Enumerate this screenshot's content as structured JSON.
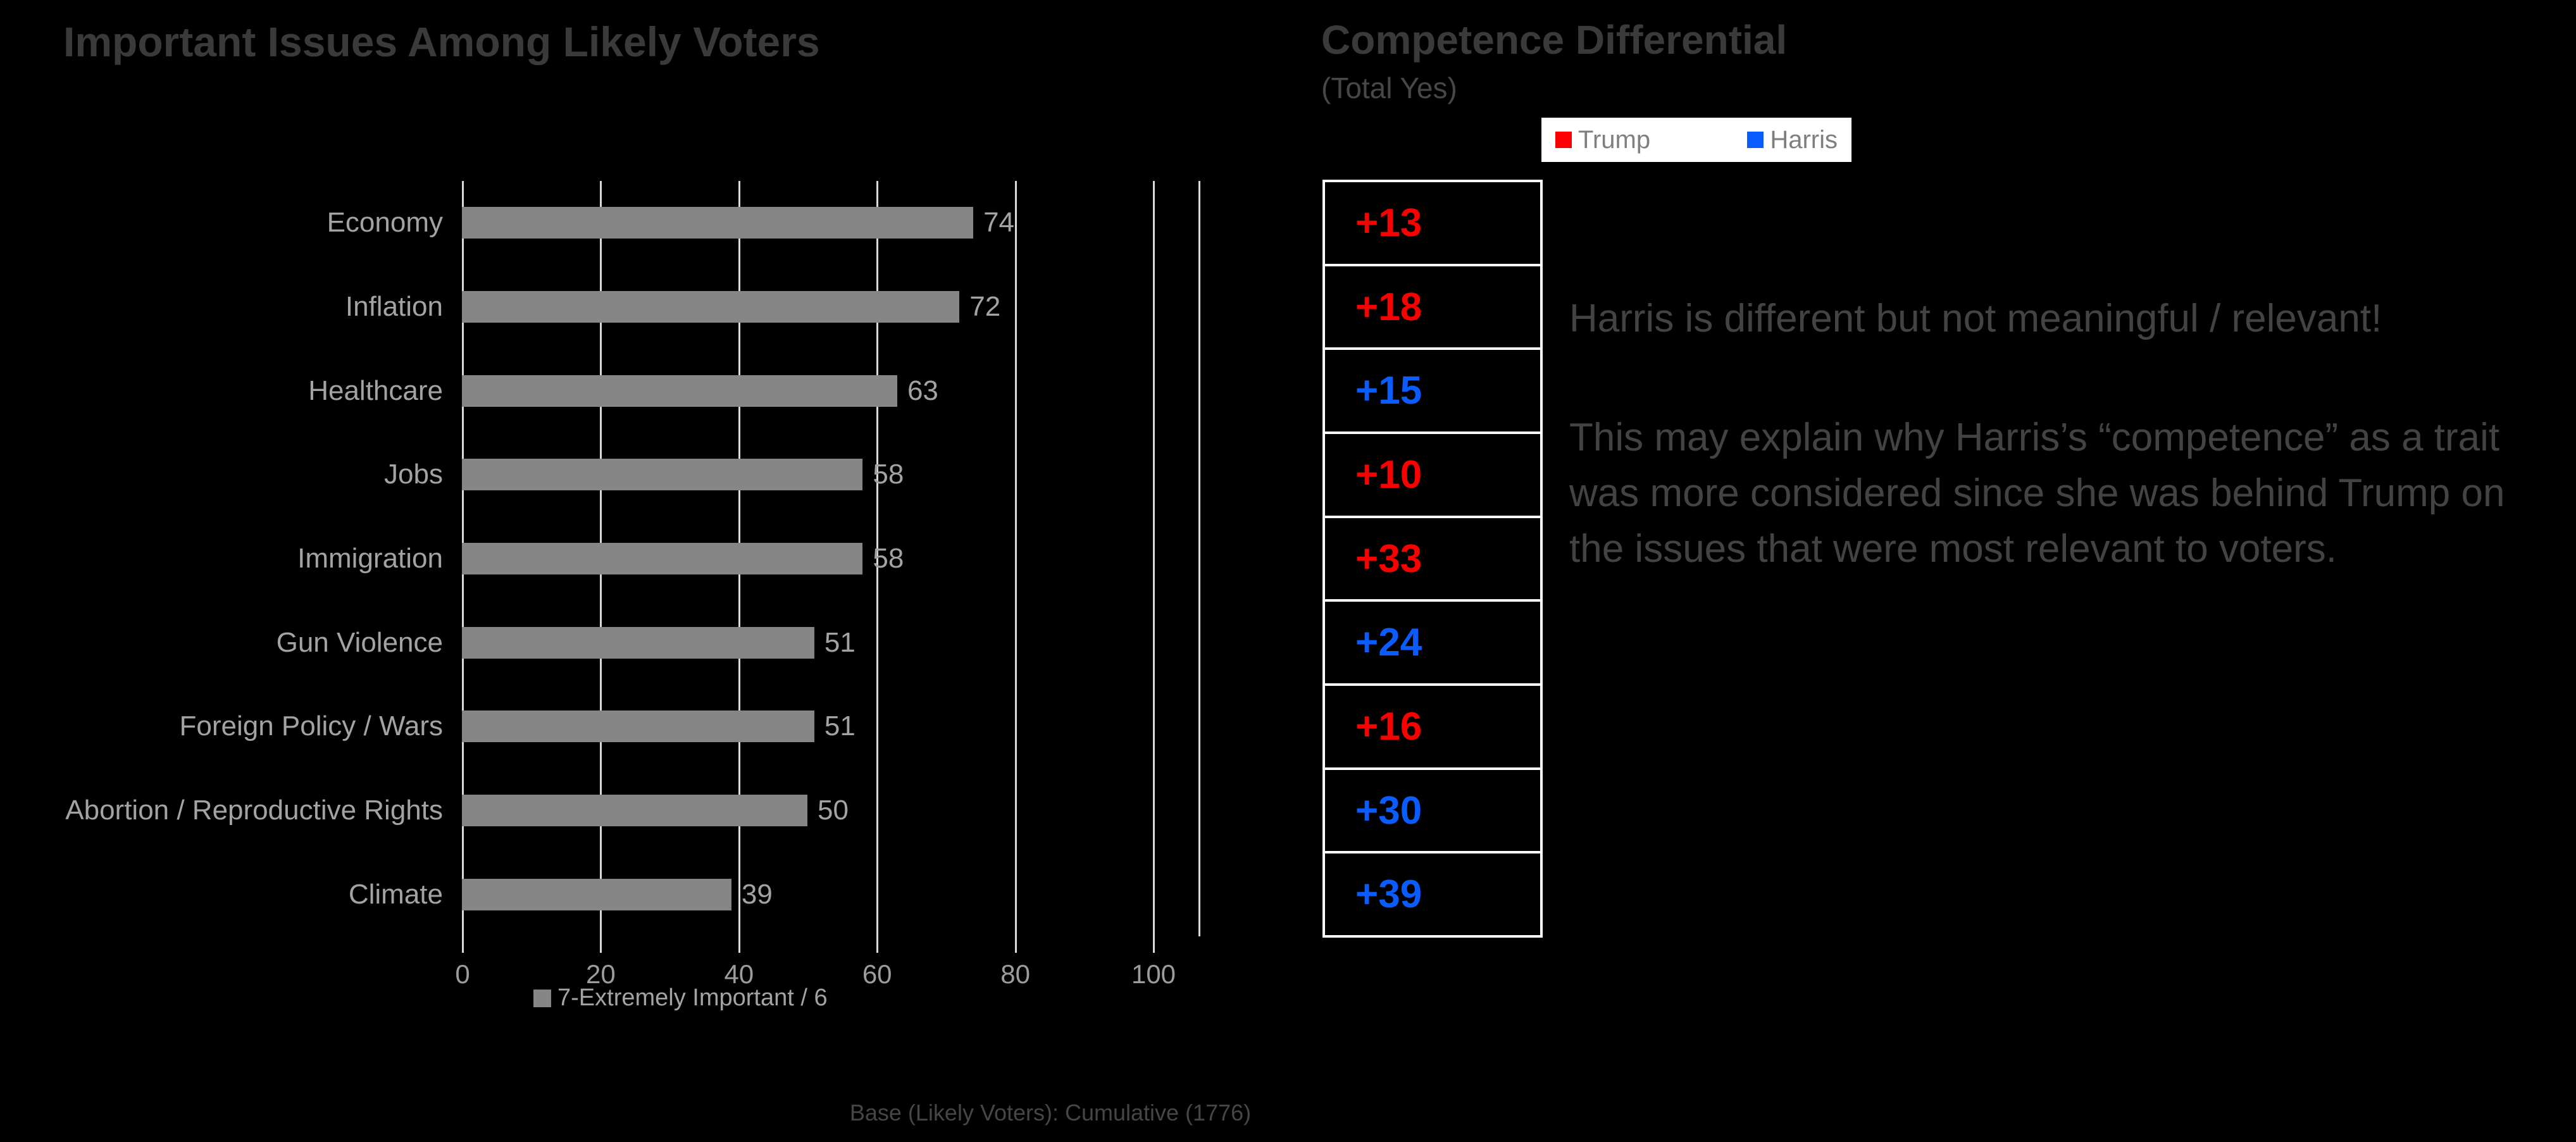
{
  "colors": {
    "background": "#000000",
    "trump": "#FA0000",
    "harris": "#0A5CFF",
    "bar_gray": "#868686",
    "gridline": "#D9D9D9",
    "label_gray": "#A3A3A3",
    "title_gray": "#3A3A3C",
    "legend_text_gray": "#7F7F7F",
    "legend_background": "#FFFFFF"
  },
  "chart_data": [
    {
      "type": "bar",
      "orientation": "horizontal",
      "title": "Important Issues Among Likely Voters",
      "categories": [
        "Economy",
        "Inflation",
        "Healthcare",
        "Jobs",
        "Immigration",
        "Gun Violence",
        "Foreign Policy / Wars",
        "Abortion / Reproductive Rights",
        "Climate"
      ],
      "values": [
        74,
        72,
        63,
        58,
        58,
        51,
        51,
        50,
        39
      ],
      "xlabel": "",
      "ylabel": "",
      "xlim": [
        0,
        100
      ],
      "xticks": [
        0,
        20,
        40,
        60,
        80,
        100
      ],
      "grid": "vertical-gridlines-on",
      "legend_position": "bottom",
      "legend_label": "7-Extremely Important / 6",
      "bar_color": "#868686",
      "data_labels": [
        74,
        72,
        63,
        58,
        58,
        51,
        51,
        50,
        39
      ]
    },
    {
      "type": "table",
      "title": "Competence Differential",
      "subtitle": "(Total Yes)",
      "legend": [
        {
          "name": "Trump",
          "party": "trump"
        },
        {
          "name": "Harris",
          "party": "harris"
        }
      ],
      "legend_position": "top",
      "rows": [
        {
          "issue": "Economy",
          "diff": "+13",
          "party": "trump"
        },
        {
          "issue": "Inflation",
          "diff": "+18",
          "party": "trump"
        },
        {
          "issue": "Healthcare",
          "diff": "+15",
          "party": "harris"
        },
        {
          "issue": "Jobs",
          "diff": "+10",
          "party": "trump"
        },
        {
          "issue": "Immigration",
          "diff": "+33",
          "party": "trump"
        },
        {
          "issue": "Gun Violence",
          "diff": "+24",
          "party": "harris"
        },
        {
          "issue": "Foreign Policy / Wars",
          "diff": "+16",
          "party": "trump"
        },
        {
          "issue": "Abortion / Reproductive Rights",
          "diff": "+30",
          "party": "harris"
        },
        {
          "issue": "Climate",
          "diff": "+39",
          "party": "harris"
        }
      ]
    }
  ],
  "notes": {
    "headline": "Harris is different but not meaningful / relevant!",
    "body": "This may explain why Harris’s “competence” as a trait was more considered since she was behind Trump on the issues that were most relevant to voters."
  },
  "footer": {
    "base_note": "Base (Likely Voters): Cumulative (1776)"
  }
}
